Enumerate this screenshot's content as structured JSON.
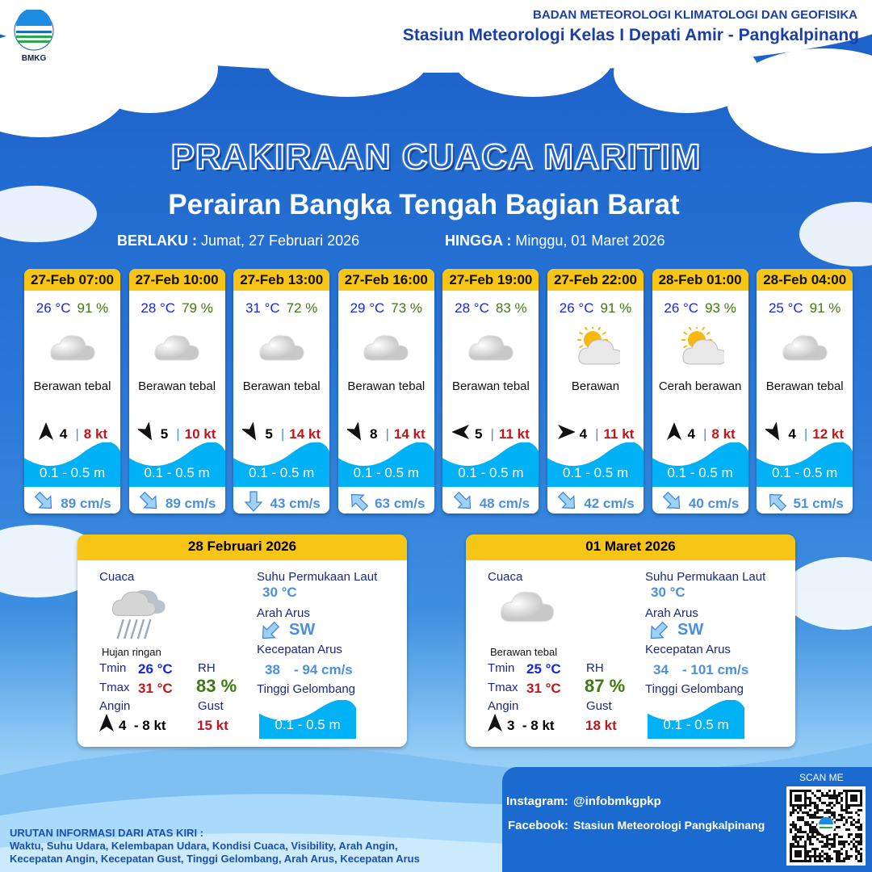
{
  "header": {
    "logo_text": "BMKG",
    "org": "BADAN METEOROLOGI KLIMATOLOGI DAN GEOFISIKA",
    "station": "Stasiun Meteorologi Kelas I Depati Amir - Pangkalpinang"
  },
  "title": "PRAKIRAAN CUACA MARITIM",
  "subtitle": "Perairan Bangka Tengah Bagian Barat",
  "validity": {
    "from_label": "BERLAKU :",
    "from": "Jumat, 27 Februari 2026",
    "to_label": "HINGGA :",
    "to": "Minggu, 01 Maret 2026"
  },
  "colors": {
    "header_yellow": "#f7c516",
    "temp": "#1428e0",
    "rh": "#3d7a10",
    "gust": "#c0161c",
    "wave": "#00b2f5",
    "current": "#4b8fe0"
  },
  "forecasts": [
    {
      "time": "27-Feb 07:00",
      "temp": "26 °C",
      "rh": "91 %",
      "icon": "cloud-icon",
      "cond": "Berawan tebal",
      "wind_dir_deg": 180,
      "wind": "4",
      "gust": "8 kt",
      "wave": "0.1 - 0.5 m",
      "cur_dir_deg": 135,
      "cur": "89 cm/s"
    },
    {
      "time": "27-Feb 10:00",
      "temp": "28 °C",
      "rh": "79 %",
      "icon": "cloud-icon",
      "cond": "Berawan tebal",
      "wind_dir_deg": -30,
      "wind": "5",
      "gust": "10 kt",
      "wave": "0.1 - 0.5 m",
      "cur_dir_deg": 135,
      "cur": "89 cm/s"
    },
    {
      "time": "27-Feb 13:00",
      "temp": "31 °C",
      "rh": "72 %",
      "icon": "cloud-icon",
      "cond": "Berawan tebal",
      "wind_dir_deg": -30,
      "wind": "5",
      "gust": "14 kt",
      "wave": "0.1 - 0.5 m",
      "cur_dir_deg": 180,
      "cur": "43 cm/s"
    },
    {
      "time": "27-Feb 16:00",
      "temp": "29 °C",
      "rh": "73 %",
      "icon": "cloud-icon",
      "cond": "Berawan tebal",
      "wind_dir_deg": -30,
      "wind": "8",
      "gust": "14 kt",
      "wave": "0.1 - 0.5 m",
      "cur_dir_deg": -45,
      "cur": "63 cm/s"
    },
    {
      "time": "27-Feb 19:00",
      "temp": "28 °C",
      "rh": "83 %",
      "icon": "cloud-icon",
      "cond": "Berawan tebal",
      "wind_dir_deg": 90,
      "wind": "5",
      "gust": "11 kt",
      "wave": "0.1 - 0.5 m",
      "cur_dir_deg": 135,
      "cur": "48 cm/s"
    },
    {
      "time": "27-Feb 22:00",
      "temp": "26 °C",
      "rh": "91 %",
      "icon": "partly-cloudy-icon",
      "cond": "Berawan",
      "wind_dir_deg": -90,
      "wind": "4",
      "gust": "11 kt",
      "wave": "0.1 - 0.5 m",
      "cur_dir_deg": 135,
      "cur": "42 cm/s"
    },
    {
      "time": "28-Feb 01:00",
      "temp": "26 °C",
      "rh": "93 %",
      "icon": "sun-cloud-icon",
      "cond": "Cerah berawan",
      "wind_dir_deg": 180,
      "wind": "4",
      "gust": "8 kt",
      "wave": "0.1 - 0.5 m",
      "cur_dir_deg": 135,
      "cur": "40 cm/s"
    },
    {
      "time": "28-Feb 04:00",
      "temp": "25 °C",
      "rh": "91 %",
      "icon": "cloud-icon",
      "cond": "Berawan tebal",
      "wind_dir_deg": -30,
      "wind": "4",
      "gust": "12 kt",
      "wave": "0.1 - 0.5 m",
      "cur_dir_deg": -45,
      "cur": "51 cm/s"
    }
  ],
  "labels": {
    "weather": "Cuaca",
    "sst": "Suhu Permukaan Laut",
    "cur_dir": "Arah Arus",
    "cur_speed": "Kecepatan Arus",
    "wave": "Tinggi Gelombang",
    "tmin": "Tmin",
    "tmax": "Tmax",
    "rh": "RH",
    "wind": "Angin",
    "gust": "Gust"
  },
  "daily": [
    {
      "date": "28 Februari 2026",
      "icon": "rain-icon",
      "cond": "Hujan ringan",
      "tmin": "26 °C",
      "tmax": "31 °C",
      "rh": "83 %",
      "wind_dir_deg": 180,
      "wind": "4  - 8 kt",
      "gust": "15 kt",
      "sst": "30 °C",
      "cur_dir": "SW",
      "cur_speed_min": "38",
      "cur_speed_max": "- 94 cm/s",
      "wave": "0.1 - 0.5 m"
    },
    {
      "date": "01 Maret 2026",
      "icon": "cloud-icon",
      "cond": "Berawan tebal",
      "tmin": "25 °C",
      "tmax": "31 °C",
      "rh": "87 %",
      "wind_dir_deg": 180,
      "wind": "3  - 8 kt",
      "gust": "18 kt",
      "sst": "30 °C",
      "cur_dir": "SW",
      "cur_speed_min": "34",
      "cur_speed_max": "- 101 cm/s",
      "wave": "0.1 - 0.5 m"
    }
  ],
  "footer": {
    "instagram_label": "Instagram:",
    "instagram": "@infobmkgpkp",
    "facebook_label": "Facebook:",
    "facebook": "Stasiun  Meteorologi  Pangkalpinang",
    "scan": "SCAN ME",
    "info_title": "URUTAN INFORMASI DARI ATAS KIRI :",
    "info_line1": "Waktu, Suhu Udara, Kelembapan Udara, Kondisi Cuaca, Visibility, Arah Angin,",
    "info_line2": "Kecepatan Angin, Kecepatan Gust, Tinggi Gelombang, Arah Arus, Kecepatan Arus"
  }
}
